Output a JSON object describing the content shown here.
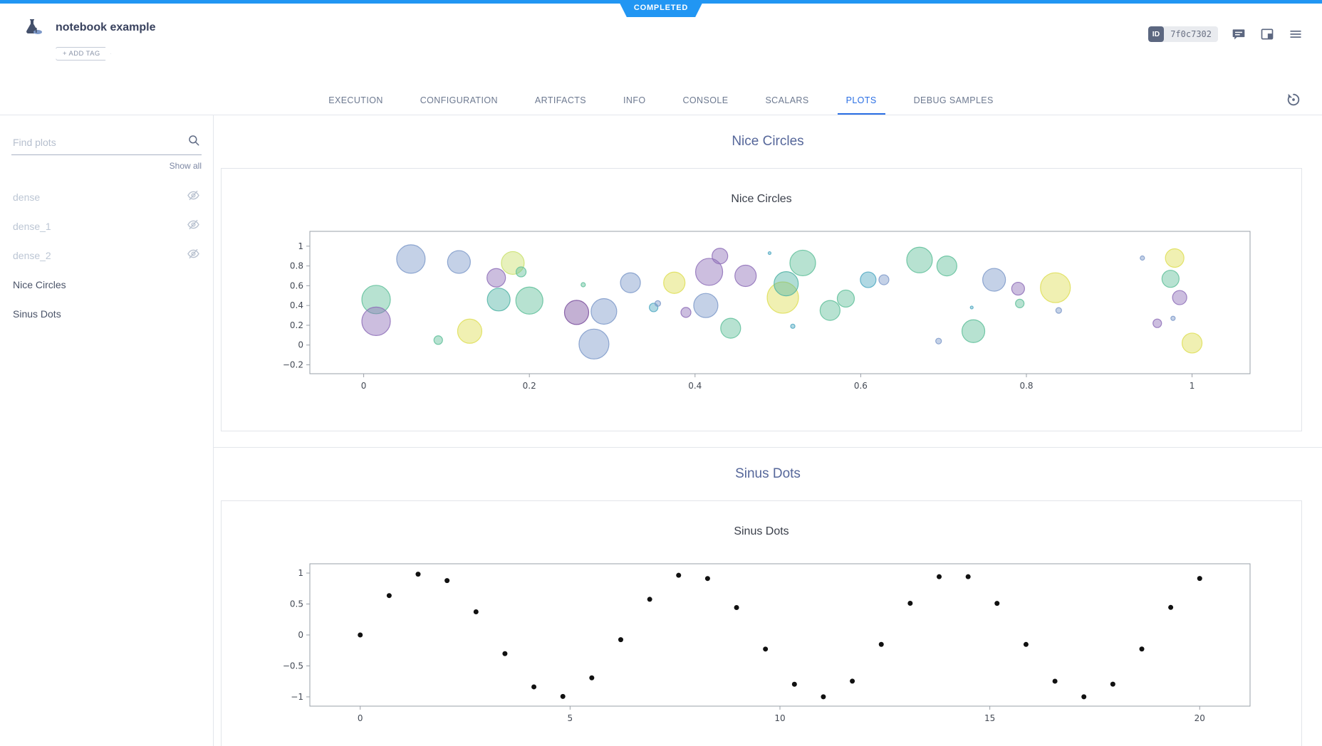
{
  "top": {
    "status": "COMPLETED"
  },
  "header": {
    "title": "notebook example",
    "add_tag": "+ ADD TAG",
    "id_label": "ID",
    "id_value": "7f0c7302"
  },
  "icons": {
    "logo": "flask-icon",
    "comments": "comments-icon",
    "panel": "side-panel-icon",
    "menu": "hamburger-icon",
    "refresh": "auto-refresh-icon",
    "search": "magnifier-icon",
    "hidden_plot": "eye-off-icon"
  },
  "tabs": [
    {
      "label": "EXECUTION",
      "active": false
    },
    {
      "label": "CONFIGURATION",
      "active": false
    },
    {
      "label": "ARTIFACTS",
      "active": false
    },
    {
      "label": "INFO",
      "active": false
    },
    {
      "label": "CONSOLE",
      "active": false
    },
    {
      "label": "SCALARS",
      "active": false
    },
    {
      "label": "PLOTS",
      "active": true
    },
    {
      "label": "DEBUG SAMPLES",
      "active": false
    }
  ],
  "sidebar": {
    "search": {
      "placeholder": "Find plots",
      "value": ""
    },
    "show_all": "Show all",
    "items": [
      {
        "label": "dense",
        "visible": false
      },
      {
        "label": "dense_1",
        "visible": false
      },
      {
        "label": "dense_2",
        "visible": false
      },
      {
        "label": "Nice Circles",
        "visible": true
      },
      {
        "label": "Sinus Dots",
        "visible": true
      }
    ]
  },
  "chart_data": [
    {
      "type": "scatter",
      "mode": "bubble",
      "section_title": "Nice Circles",
      "title": "Nice Circles",
      "xlim": [
        -0.065,
        1.07
      ],
      "ylim": [
        -0.29,
        1.15
      ],
      "xticks": [
        0,
        0.2,
        0.4,
        0.6,
        0.8,
        1
      ],
      "yticks": [
        -0.2,
        0,
        0.2,
        0.4,
        0.6,
        0.8,
        1
      ],
      "grid": false,
      "legend": false,
      "points": [
        {
          "x": 0.015,
          "y": 0.46,
          "r": 20,
          "c": "#5fbf9a"
        },
        {
          "x": 0.015,
          "y": 0.24,
          "r": 20,
          "c": "#8e6fb8"
        },
        {
          "x": 0.057,
          "y": 0.87,
          "r": 20,
          "c": "#7d99c9"
        },
        {
          "x": 0.09,
          "y": 0.05,
          "r": 6,
          "c": "#5fbf9a"
        },
        {
          "x": 0.115,
          "y": 0.84,
          "r": 16,
          "c": "#7d99c9"
        },
        {
          "x": 0.128,
          "y": 0.14,
          "r": 17,
          "c": "#dede55"
        },
        {
          "x": 0.16,
          "y": 0.68,
          "r": 13,
          "c": "#8e6fb8"
        },
        {
          "x": 0.163,
          "y": 0.46,
          "r": 16,
          "c": "#4fb3a5"
        },
        {
          "x": 0.18,
          "y": 0.83,
          "r": 16,
          "c": "#c9e06a"
        },
        {
          "x": 0.19,
          "y": 0.74,
          "r": 7,
          "c": "#5fbf9a"
        },
        {
          "x": 0.2,
          "y": 0.45,
          "r": 19,
          "c": "#5fbf9a"
        },
        {
          "x": 0.257,
          "y": 0.33,
          "r": 17,
          "c": "#7a4f9e"
        },
        {
          "x": 0.265,
          "y": 0.61,
          "r": 3,
          "c": "#5fbf9a"
        },
        {
          "x": 0.278,
          "y": 0.01,
          "r": 21,
          "c": "#7d99c9"
        },
        {
          "x": 0.29,
          "y": 0.34,
          "r": 18,
          "c": "#7d99c9"
        },
        {
          "x": 0.322,
          "y": 0.63,
          "r": 14,
          "c": "#7d99c9"
        },
        {
          "x": 0.35,
          "y": 0.38,
          "r": 6,
          "c": "#4fa8c2"
        },
        {
          "x": 0.355,
          "y": 0.42,
          "r": 4,
          "c": "#7d99c9"
        },
        {
          "x": 0.375,
          "y": 0.63,
          "r": 15,
          "c": "#dede55"
        },
        {
          "x": 0.389,
          "y": 0.33,
          "r": 7,
          "c": "#8e6fb8"
        },
        {
          "x": 0.413,
          "y": 0.4,
          "r": 17,
          "c": "#7d99c9"
        },
        {
          "x": 0.417,
          "y": 0.74,
          "r": 19,
          "c": "#8e6fb8"
        },
        {
          "x": 0.43,
          "y": 0.9,
          "r": 11,
          "c": "#8e6fb8"
        },
        {
          "x": 0.443,
          "y": 0.17,
          "r": 14,
          "c": "#5fbf9a"
        },
        {
          "x": 0.461,
          "y": 0.7,
          "r": 15,
          "c": "#8e6fb8"
        },
        {
          "x": 0.49,
          "y": 0.93,
          "r": 2,
          "c": "#4fa8c2"
        },
        {
          "x": 0.506,
          "y": 0.48,
          "r": 22,
          "c": "#dede55"
        },
        {
          "x": 0.51,
          "y": 0.62,
          "r": 17,
          "c": "#4fb3a5"
        },
        {
          "x": 0.518,
          "y": 0.19,
          "r": 3,
          "c": "#4fa8c2"
        },
        {
          "x": 0.53,
          "y": 0.83,
          "r": 18,
          "c": "#5fbf9a"
        },
        {
          "x": 0.563,
          "y": 0.35,
          "r": 14,
          "c": "#5fbf9a"
        },
        {
          "x": 0.582,
          "y": 0.47,
          "r": 12,
          "c": "#5fbf9a"
        },
        {
          "x": 0.609,
          "y": 0.66,
          "r": 11,
          "c": "#4fa8c2"
        },
        {
          "x": 0.628,
          "y": 0.66,
          "r": 7,
          "c": "#7d99c9"
        },
        {
          "x": 0.671,
          "y": 0.86,
          "r": 18,
          "c": "#5fbf9a"
        },
        {
          "x": 0.704,
          "y": 0.8,
          "r": 14,
          "c": "#5fbf9a"
        },
        {
          "x": 0.694,
          "y": 0.04,
          "r": 4,
          "c": "#7d99c9"
        },
        {
          "x": 0.734,
          "y": 0.38,
          "r": 2,
          "c": "#4fa8c2"
        },
        {
          "x": 0.736,
          "y": 0.14,
          "r": 16,
          "c": "#5fbf9a"
        },
        {
          "x": 0.761,
          "y": 0.66,
          "r": 16,
          "c": "#7d99c9"
        },
        {
          "x": 0.79,
          "y": 0.57,
          "r": 9,
          "c": "#8e6fb8"
        },
        {
          "x": 0.792,
          "y": 0.42,
          "r": 6,
          "c": "#5fbf9a"
        },
        {
          "x": 0.835,
          "y": 0.58,
          "r": 21,
          "c": "#dede55"
        },
        {
          "x": 0.839,
          "y": 0.35,
          "r": 4,
          "c": "#7d99c9"
        },
        {
          "x": 0.94,
          "y": 0.88,
          "r": 3,
          "c": "#7d99c9"
        },
        {
          "x": 0.958,
          "y": 0.22,
          "r": 6,
          "c": "#8e6fb8"
        },
        {
          "x": 0.979,
          "y": 0.88,
          "r": 13,
          "c": "#dede55"
        },
        {
          "x": 0.974,
          "y": 0.67,
          "r": 12,
          "c": "#5fbf9a"
        },
        {
          "x": 0.985,
          "y": 0.48,
          "r": 10,
          "c": "#8e6fb8"
        },
        {
          "x": 0.977,
          "y": 0.27,
          "r": 3,
          "c": "#7d99c9"
        },
        {
          "x": 1.0,
          "y": 0.02,
          "r": 14,
          "c": "#dede55"
        }
      ]
    },
    {
      "type": "scatter",
      "mode": "markers",
      "section_title": "Sinus Dots",
      "title": "Sinus Dots",
      "xlim": [
        -1.2,
        21.2
      ],
      "ylim": [
        -1.15,
        1.15
      ],
      "xticks": [
        0,
        5,
        10,
        15,
        20
      ],
      "yticks": [
        -1,
        -0.5,
        0,
        0.5,
        1
      ],
      "grid": false,
      "legend": false,
      "marker_color": "#111111",
      "x": [
        0,
        0.69,
        1.379,
        2.069,
        2.759,
        3.448,
        4.138,
        4.828,
        5.517,
        6.207,
        6.897,
        7.586,
        8.276,
        8.966,
        9.655,
        10.345,
        11.034,
        11.724,
        12.414,
        13.103,
        13.793,
        14.483,
        15.172,
        15.862,
        16.552,
        17.241,
        17.931,
        18.621,
        19.31,
        20
      ],
      "y": [
        0,
        0.636,
        0.982,
        0.878,
        0.374,
        -0.302,
        -0.839,
        -0.993,
        -0.693,
        -0.076,
        0.576,
        0.964,
        0.912,
        0.443,
        -0.228,
        -0.796,
        -0.999,
        -0.746,
        -0.152,
        0.512,
        0.941,
        0.941,
        0.51,
        -0.153,
        -0.747,
        -0.999,
        -0.795,
        -0.227,
        0.445,
        0.913
      ]
    }
  ]
}
